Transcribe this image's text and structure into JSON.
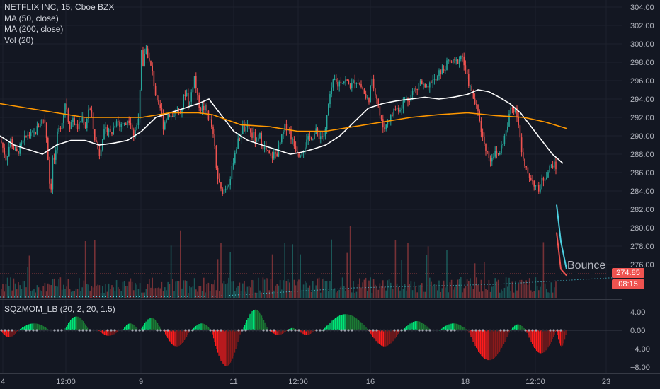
{
  "legend": {
    "symbol": "NETFLIX INC, 15, Cboe BZX",
    "ma50": "MA (50, close)",
    "ma200": "MA (200, close)",
    "vol": "Vol (20)"
  },
  "indicator": {
    "label": "SQZMOM_LB (20, 2, 20, 1.5)"
  },
  "annotation": "Bounce",
  "last_price": {
    "value": "274.85",
    "countdown": "08:15"
  },
  "colors": {
    "background": "#131722",
    "up": "#26a69a",
    "down": "#ef5350",
    "ma50": "#ffffff",
    "ma200": "#ff9800",
    "mom_up_strong": "#00e676",
    "mom_up_weak": "#1b7a34",
    "mom_down_strong": "#ff1c1c",
    "mom_down_weak": "#8b1a1a",
    "trend_line": "#4dd0e1"
  },
  "chart_data": [
    {
      "type": "candlestick",
      "title": "NETFLIX INC, 15, Cboe BZX",
      "y_ticks": [
        "304.00",
        "302.00",
        "300.00",
        "298.00",
        "296.00",
        "294.00",
        "292.00",
        "290.00",
        "288.00",
        "286.00",
        "284.00",
        "282.00",
        "280.00",
        "278.00",
        "276.00"
      ],
      "x_ticks": [
        "4",
        "12:00",
        "9",
        "11",
        "12:00",
        "16",
        "18",
        "12:00",
        "23"
      ],
      "ylim": [
        274,
        304.5
      ],
      "price_path": [
        [
          0,
          289.5
        ],
        [
          8,
          287.5
        ],
        [
          14,
          289.5
        ],
        [
          22,
          288
        ],
        [
          30,
          289
        ],
        [
          38,
          290.2
        ],
        [
          44,
          290
        ],
        [
          50,
          290.5
        ],
        [
          56,
          291.5
        ],
        [
          62,
          292
        ],
        [
          66,
          289
        ],
        [
          69,
          285
        ],
        [
          71,
          284
        ],
        [
          74,
          288
        ],
        [
          77,
          287
        ],
        [
          80,
          290
        ],
        [
          84,
          291
        ],
        [
          88,
          292
        ],
        [
          92,
          294
        ],
        [
          95,
          292
        ],
        [
          98,
          291
        ],
        [
          102,
          292
        ],
        [
          106,
          291
        ],
        [
          110,
          291
        ],
        [
          115,
          292
        ],
        [
          120,
          291
        ],
        [
          124,
          293
        ],
        [
          128,
          292.5
        ],
        [
          132,
          290
        ],
        [
          136,
          289
        ],
        [
          140,
          288
        ],
        [
          144,
          290
        ],
        [
          148,
          290.5
        ],
        [
          152,
          291
        ],
        [
          156,
          290
        ],
        [
          160,
          291
        ],
        [
          164,
          292
        ],
        [
          168,
          291
        ],
        [
          172,
          291.5
        ],
        [
          176,
          291
        ],
        [
          180,
          292
        ],
        [
          184,
          291.5
        ],
        [
          188,
          290
        ],
        [
          192,
          291
        ],
        [
          196,
          293
        ],
        [
          199,
          299
        ],
        [
          201,
          297
        ],
        [
          203,
          299
        ],
        [
          206,
          299.5
        ],
        [
          210,
          298
        ],
        [
          214,
          297
        ],
        [
          218,
          295
        ],
        [
          222,
          293
        ],
        [
          226,
          293
        ],
        [
          230,
          291
        ],
        [
          234,
          292
        ],
        [
          238,
          292.5
        ],
        [
          242,
          292
        ],
        [
          246,
          292.5
        ],
        [
          250,
          293
        ],
        [
          254,
          292
        ],
        [
          258,
          294
        ],
        [
          262,
          295
        ],
        [
          266,
          293
        ],
        [
          270,
          295
        ],
        [
          274,
          296.5
        ],
        [
          278,
          294
        ],
        [
          282,
          293
        ],
        [
          286,
          293
        ],
        [
          290,
          293
        ],
        [
          294,
          292
        ],
        [
          298,
          291
        ],
        [
          302,
          289
        ],
        [
          305,
          286
        ],
        [
          308,
          285
        ],
        [
          311,
          284
        ],
        [
          314,
          284
        ],
        [
          318,
          284.5
        ],
        [
          322,
          285
        ],
        [
          326,
          286
        ],
        [
          330,
          288
        ],
        [
          334,
          289
        ],
        [
          338,
          290
        ],
        [
          342,
          291
        ],
        [
          346,
          290.5
        ],
        [
          350,
          291
        ],
        [
          354,
          290
        ],
        [
          358,
          290
        ],
        [
          362,
          289
        ],
        [
          366,
          290
        ],
        [
          370,
          289
        ],
        [
          374,
          288.5
        ],
        [
          378,
          288
        ],
        [
          382,
          287.5
        ],
        [
          386,
          288
        ],
        [
          390,
          288
        ],
        [
          394,
          289
        ],
        [
          398,
          290
        ],
        [
          402,
          291
        ],
        [
          406,
          291
        ],
        [
          410,
          290
        ],
        [
          414,
          289
        ],
        [
          418,
          288.5
        ],
        [
          422,
          288
        ],
        [
          426,
          288.5
        ],
        [
          430,
          289
        ],
        [
          434,
          289.5
        ],
        [
          438,
          290
        ],
        [
          442,
          290
        ],
        [
          446,
          290.5
        ],
        [
          450,
          290
        ],
        [
          454,
          290
        ],
        [
          458,
          290
        ],
        [
          462,
          293
        ],
        [
          465,
          294
        ],
        [
          468,
          295.5
        ],
        [
          472,
          296
        ],
        [
          476,
          295.5
        ],
        [
          480,
          296
        ],
        [
          484,
          296
        ],
        [
          488,
          296
        ],
        [
          492,
          295.5
        ],
        [
          496,
          295.5
        ],
        [
          500,
          296
        ],
        [
          504,
          296
        ],
        [
          508,
          295.5
        ],
        [
          512,
          295
        ],
        [
          516,
          294
        ],
        [
          520,
          294
        ],
        [
          524,
          296
        ],
        [
          528,
          295
        ],
        [
          532,
          294
        ],
        [
          536,
          292
        ],
        [
          540,
          291
        ],
        [
          544,
          291
        ],
        [
          548,
          292
        ],
        [
          552,
          292
        ],
        [
          556,
          293
        ],
        [
          560,
          293
        ],
        [
          564,
          293
        ],
        [
          568,
          293.5
        ],
        [
          572,
          294
        ],
        [
          576,
          294
        ],
        [
          580,
          294.5
        ],
        [
          584,
          295
        ],
        [
          588,
          295
        ],
        [
          592,
          296
        ],
        [
          596,
          295.5
        ],
        [
          600,
          295
        ],
        [
          604,
          295
        ],
        [
          608,
          296
        ],
        [
          612,
          296
        ],
        [
          616,
          296
        ],
        [
          620,
          297
        ],
        [
          624,
          297
        ],
        [
          628,
          297.5
        ],
        [
          632,
          298
        ],
        [
          636,
          298
        ],
        [
          640,
          298
        ],
        [
          644,
          298
        ],
        [
          648,
          298.5
        ],
        [
          652,
          298.8
        ],
        [
          656,
          297
        ],
        [
          660,
          296
        ],
        [
          664,
          295
        ],
        [
          668,
          294
        ],
        [
          672,
          293
        ],
        [
          676,
          292
        ],
        [
          680,
          290
        ],
        [
          684,
          289
        ],
        [
          688,
          288
        ],
        [
          692,
          287.5
        ],
        [
          696,
          288
        ],
        [
          700,
          288
        ],
        [
          704,
          288
        ],
        [
          708,
          289
        ],
        [
          712,
          290
        ],
        [
          716,
          291
        ],
        [
          720,
          293
        ],
        [
          724,
          293
        ],
        [
          728,
          293
        ],
        [
          732,
          291
        ],
        [
          736,
          288
        ],
        [
          740,
          286.5
        ],
        [
          744,
          286
        ],
        [
          748,
          285.5
        ],
        [
          752,
          285
        ],
        [
          756,
          284.5
        ],
        [
          760,
          284
        ],
        [
          764,
          285
        ],
        [
          768,
          285.5
        ],
        [
          772,
          286
        ],
        [
          776,
          286.5
        ],
        [
          780,
          287
        ],
        [
          784,
          286.5
        ]
      ],
      "series": [
        {
          "name": "MA (50, close)",
          "points": [
            [
              0,
              290
            ],
            [
              20,
              289
            ],
            [
              40,
              288.5
            ],
            [
              60,
              288
            ],
            [
              80,
              289
            ],
            [
              100,
              289.5
            ],
            [
              120,
              289.5
            ],
            [
              140,
              289
            ],
            [
              160,
              289.2
            ],
            [
              180,
              289.5
            ],
            [
              200,
              290.5
            ],
            [
              220,
              292
            ],
            [
              240,
              292.5
            ],
            [
              260,
              293
            ],
            [
              280,
              293.5
            ],
            [
              295,
              294
            ],
            [
              310,
              292.5
            ],
            [
              330,
              290.5
            ],
            [
              350,
              289.5
            ],
            [
              370,
              289
            ],
            [
              390,
              288.5
            ],
            [
              410,
              288
            ],
            [
              425,
              288.2
            ],
            [
              440,
              288.5
            ],
            [
              460,
              289
            ],
            [
              480,
              290
            ],
            [
              500,
              291.5
            ],
            [
              520,
              293
            ],
            [
              540,
              293.5
            ],
            [
              560,
              293.8
            ],
            [
              580,
              294
            ],
            [
              600,
              294.2
            ],
            [
              620,
              294
            ],
            [
              640,
              294.2
            ],
            [
              660,
              294.5
            ],
            [
              675,
              295
            ],
            [
              690,
              294.8
            ],
            [
              705,
              294.2
            ],
            [
              720,
              293.5
            ],
            [
              735,
              292.5
            ],
            [
              750,
              291
            ],
            [
              765,
              289.5
            ],
            [
              780,
              288
            ],
            [
              795,
              287
            ]
          ]
        },
        {
          "name": "MA (200, close)",
          "points": [
            [
              0,
              293.5
            ],
            [
              40,
              293
            ],
            [
              80,
              292.5
            ],
            [
              120,
              292
            ],
            [
              160,
              292
            ],
            [
              200,
              292
            ],
            [
              240,
              292.5
            ],
            [
              280,
              292.5
            ],
            [
              300,
              292.3
            ],
            [
              340,
              291.2
            ],
            [
              380,
              291
            ],
            [
              420,
              290.5
            ],
            [
              460,
              290.5
            ],
            [
              500,
              291
            ],
            [
              540,
              291.5
            ],
            [
              580,
              292
            ],
            [
              620,
              292.3
            ],
            [
              660,
              292.5
            ],
            [
              700,
              292.2
            ],
            [
              740,
              292
            ],
            [
              770,
              291.5
            ],
            [
              800,
              290.8
            ]
          ]
        }
      ],
      "bounce_line": [
        [
          786,
          282.5
        ],
        [
          792,
          278.5
        ],
        [
          800,
          275.5
        ]
      ],
      "overshoot_line": [
        [
          786,
          279.5
        ],
        [
          792,
          275.5
        ],
        [
          800,
          274.8
        ]
      ]
    },
    {
      "type": "histogram",
      "title": "SQZMOM_LB (20, 2, 20, 1.5)",
      "y_ticks": [
        "4.00",
        "0.00",
        "−4.00",
        "−8.00"
      ],
      "ylim": [
        -9,
        6
      ],
      "segments": [
        {
          "from": 0,
          "to": 25,
          "peak": -1.5,
          "phase": "neg"
        },
        {
          "from": 25,
          "to": 70,
          "peak": 1.5,
          "phase": "pos"
        },
        {
          "from": 90,
          "to": 125,
          "peak": 3,
          "phase": "pos"
        },
        {
          "from": 138,
          "to": 168,
          "peak": -1.2,
          "phase": "neg"
        },
        {
          "from": 172,
          "to": 195,
          "peak": 1.5,
          "phase": "pos"
        },
        {
          "from": 198,
          "to": 228,
          "peak": 2.7,
          "phase": "pos"
        },
        {
          "from": 230,
          "to": 268,
          "peak": -3.5,
          "phase": "neg"
        },
        {
          "from": 270,
          "to": 298,
          "peak": 1.5,
          "phase": "pos"
        },
        {
          "from": 298,
          "to": 340,
          "peak": -7.8,
          "phase": "neg"
        },
        {
          "from": 342,
          "to": 378,
          "peak": 4.5,
          "phase": "pos"
        },
        {
          "from": 380,
          "to": 405,
          "peak": -1,
          "phase": "neg"
        },
        {
          "from": 405,
          "to": 420,
          "peak": 0.5,
          "phase": "pos"
        },
        {
          "from": 420,
          "to": 445,
          "peak": -1,
          "phase": "neg"
        },
        {
          "from": 455,
          "to": 520,
          "peak": 3.5,
          "phase": "pos"
        },
        {
          "from": 520,
          "to": 565,
          "peak": -3.5,
          "phase": "neg"
        },
        {
          "from": 568,
          "to": 608,
          "peak": 2,
          "phase": "pos"
        },
        {
          "from": 620,
          "to": 660,
          "peak": 1.5,
          "phase": "pos"
        },
        {
          "from": 660,
          "to": 720,
          "peak": -6.5,
          "phase": "neg"
        },
        {
          "from": 720,
          "to": 742,
          "peak": 1.3,
          "phase": "pos"
        },
        {
          "from": 742,
          "to": 785,
          "peak": -5,
          "phase": "neg"
        },
        {
          "from": 785,
          "to": 800,
          "peak": -3.5,
          "phase": "neg"
        }
      ]
    }
  ]
}
